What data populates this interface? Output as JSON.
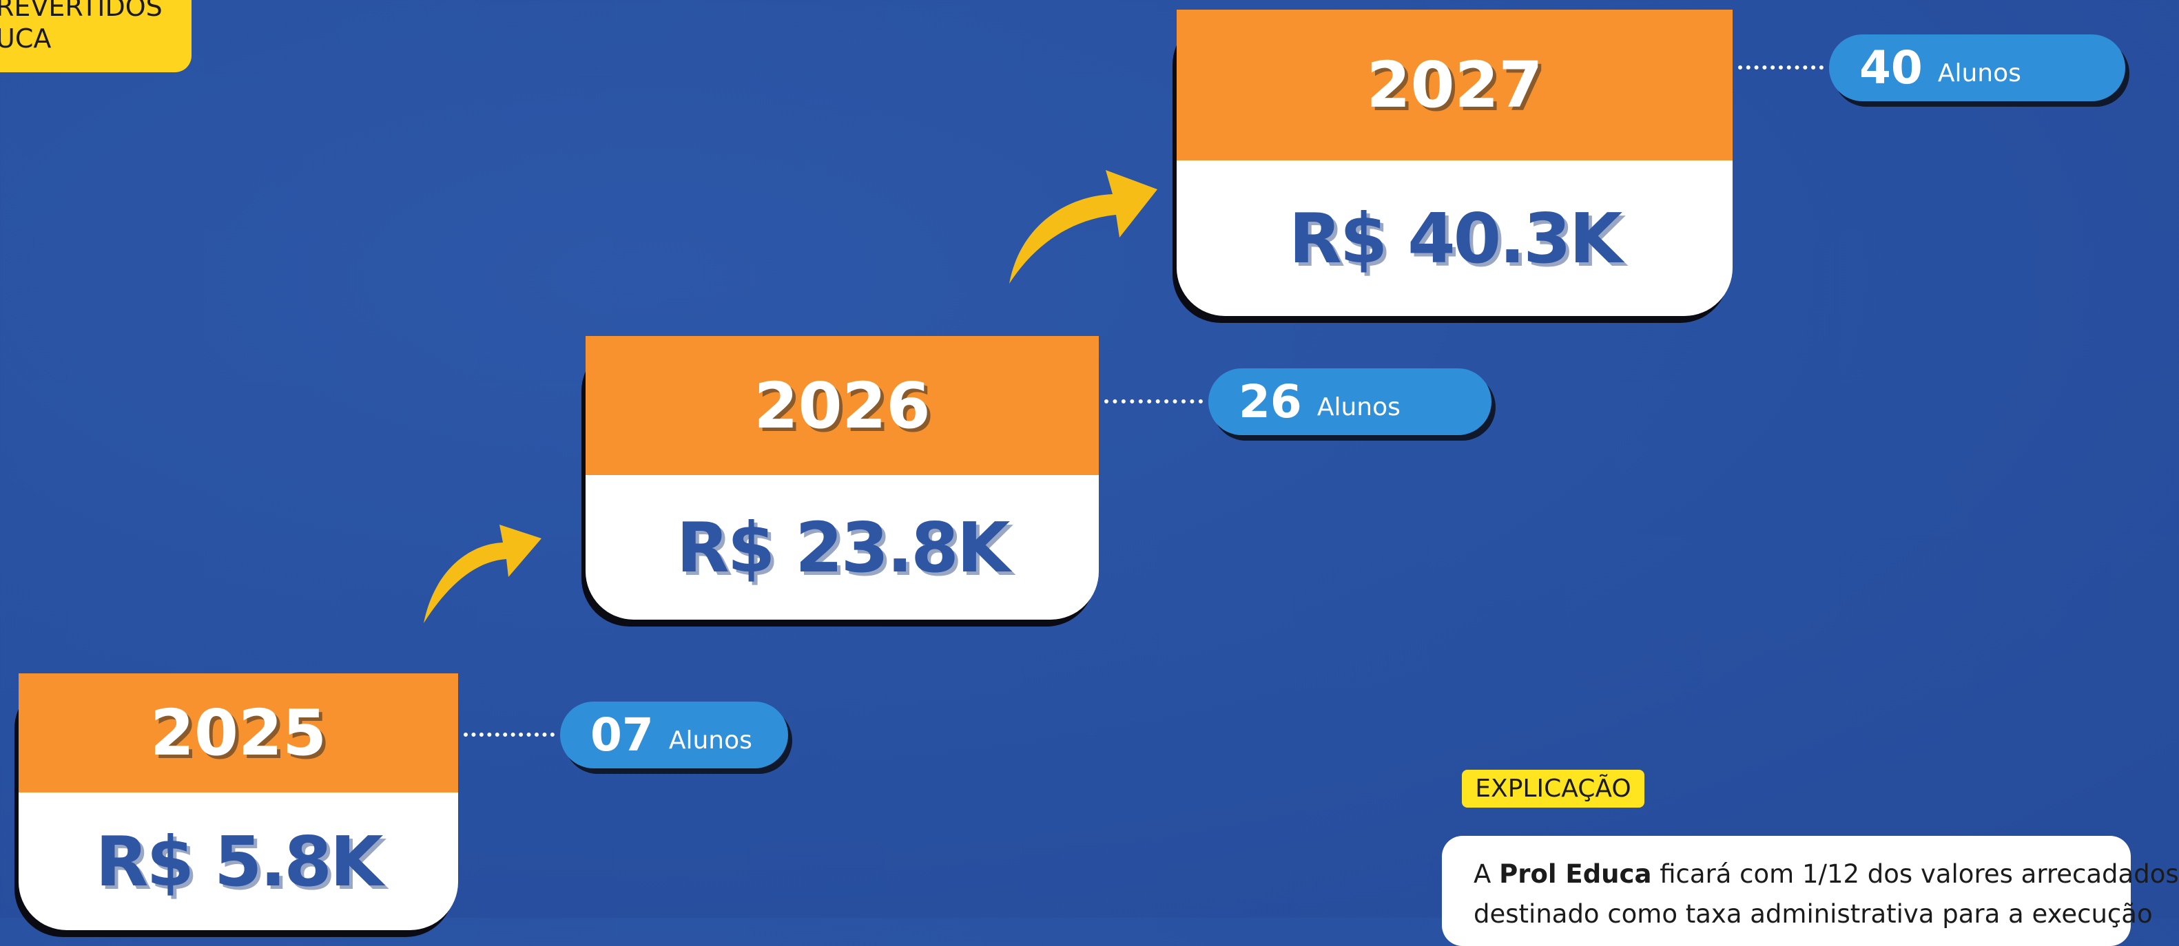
{
  "header": {
    "lines": [
      "REVERTIDOS",
      "UCA"
    ]
  },
  "steps": [
    {
      "year": "2025",
      "amount": "R$ 5.8K",
      "students": "07",
      "unit": "Alunos"
    },
    {
      "year": "2026",
      "amount": "R$ 23.8K",
      "students": "26",
      "unit": "Alunos"
    },
    {
      "year": "2027",
      "amount": "R$ 40.3K",
      "students": "40",
      "unit": "Alunos"
    }
  ],
  "explanation": {
    "tag": "EXPLICAÇÃO",
    "line1": [
      {
        "text": "A ",
        "bold": false
      },
      {
        "text": "Prol Educa",
        "bold": true
      },
      {
        "text": " ficará com 1/12 dos valores arrecadados",
        "bold": false
      }
    ],
    "line2": "destinado como taxa administrativa para a execução"
  }
}
